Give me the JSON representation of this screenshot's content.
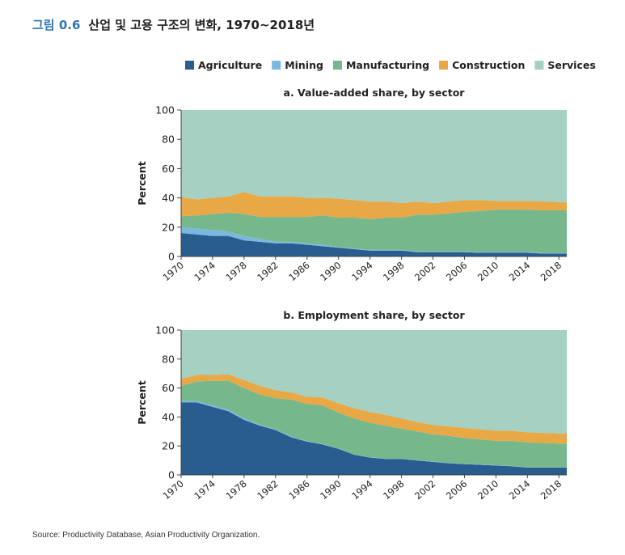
{
  "figure": {
    "number": "그림 0.6",
    "title": "산업 및 고용 구조의 변화, 1970~2018년",
    "source": "Source: Productivity Database, Asian Productivity Organization."
  },
  "colors": {
    "Agriculture": "#2a5d8f",
    "Mining": "#7ab8df",
    "Manufacturing": "#76b88c",
    "Construction": "#e8a845",
    "Services": "#a5d0c2"
  },
  "chart_data": [
    {
      "type": "area",
      "stacked": true,
      "title": "a. Value-added share, by sector",
      "xlabel": "",
      "ylabel": "Percent",
      "xlim": [
        1970,
        2019
      ],
      "ylim": [
        0,
        100
      ],
      "yticks": [
        0,
        20,
        40,
        60,
        80,
        100
      ],
      "xticks": [
        "1970",
        "1974",
        "1978",
        "1982",
        "1986",
        "1990",
        "1994",
        "1998",
        "2002",
        "2006",
        "2010",
        "2014",
        "2018"
      ],
      "legend": [
        "Agriculture",
        "Mining",
        "Manufacturing",
        "Construction",
        "Services"
      ],
      "x": [
        1970,
        1972,
        1974,
        1976,
        1978,
        1980,
        1982,
        1984,
        1986,
        1988,
        1990,
        1992,
        1994,
        1996,
        1998,
        2000,
        2002,
        2004,
        2006,
        2008,
        2010,
        2012,
        2014,
        2016,
        2019
      ],
      "series": [
        {
          "name": "Agriculture",
          "values": [
            16,
            15,
            14,
            14,
            11,
            10,
            9,
            9,
            8,
            7,
            6,
            5,
            4,
            4,
            4,
            3,
            3,
            3,
            3,
            2.5,
            2.5,
            2.5,
            2.5,
            2,
            2
          ]
        },
        {
          "name": "Mining",
          "values": [
            4,
            4,
            4,
            3,
            3,
            2,
            1,
            1,
            1,
            1,
            0.5,
            0.5,
            0.5,
            0.5,
            0.5,
            0.5,
            0.5,
            0.5,
            0.5,
            0.5,
            0.5,
            0.5,
            0.5,
            0.5,
            0.5
          ]
        },
        {
          "name": "Manufacturing",
          "values": [
            7.5,
            9,
            11,
            13,
            15,
            15,
            17,
            17,
            18,
            20,
            20,
            21,
            21,
            22,
            22,
            25,
            25,
            26,
            27,
            28,
            29,
            29,
            29,
            29,
            29
          ]
        },
        {
          "name": "Construction",
          "values": [
            13,
            11,
            11,
            11,
            15,
            14,
            14,
            14,
            13,
            12,
            13,
            12,
            12,
            11,
            10,
            9,
            8,
            8,
            8,
            7.5,
            6,
            6,
            6,
            6,
            5.5
          ]
        },
        {
          "name": "Services",
          "values": [
            59.5,
            61,
            60,
            59,
            56,
            59,
            59,
            59,
            60,
            60,
            60.5,
            61.5,
            62.5,
            62.5,
            63.5,
            62.5,
            63.5,
            62.5,
            61.5,
            61.5,
            62,
            62,
            62,
            62.5,
            63
          ]
        }
      ]
    },
    {
      "type": "area",
      "stacked": true,
      "title": "b. Employment share, by sector",
      "xlabel": "",
      "ylabel": "Percent",
      "xlim": [
        1970,
        2019
      ],
      "ylim": [
        0,
        100
      ],
      "yticks": [
        0,
        20,
        40,
        60,
        80,
        100
      ],
      "xticks": [
        "1970",
        "1974",
        "1978",
        "1982",
        "1986",
        "1990",
        "1994",
        "1998",
        "2002",
        "2006",
        "2010",
        "2014",
        "2018"
      ],
      "legend": [
        "Agriculture",
        "Mining",
        "Manufacturing",
        "Construction",
        "Services"
      ],
      "x": [
        1970,
        1972,
        1974,
        1976,
        1978,
        1980,
        1982,
        1984,
        1986,
        1988,
        1990,
        1992,
        1994,
        1996,
        1998,
        2000,
        2002,
        2004,
        2006,
        2008,
        2010,
        2012,
        2014,
        2016,
        2019
      ],
      "series": [
        {
          "name": "Agriculture",
          "values": [
            50,
            50,
            47,
            44,
            38,
            34,
            31,
            26,
            23,
            21,
            18,
            14,
            12,
            11,
            11,
            10,
            9,
            8,
            7.5,
            7,
            6.5,
            6,
            5,
            5,
            5
          ]
        },
        {
          "name": "Mining",
          "values": [
            1,
            1,
            1,
            1,
            1,
            0.8,
            0.5,
            0.5,
            0.3,
            0.3,
            0.3,
            0.2,
            0.2,
            0.2,
            0.2,
            0.2,
            0.2,
            0.2,
            0.2,
            0.2,
            0.2,
            0.2,
            0.2,
            0.2,
            0.2
          ]
        },
        {
          "name": "Manufacturing",
          "values": [
            10.5,
            13.5,
            17,
            20,
            21,
            20.7,
            21.5,
            25.5,
            25.7,
            26.7,
            24.7,
            24.8,
            23.8,
            22.8,
            20.8,
            19.8,
            18.8,
            18.8,
            17.8,
            17.3,
            16.8,
            17.3,
            17.3,
            16.8,
            16.3
          ]
        },
        {
          "name": "Construction",
          "values": [
            5,
            4.5,
            4,
            4.5,
            5.5,
            6,
            5.5,
            5,
            5,
            5.5,
            6.5,
            7,
            7.5,
            7.5,
            7,
            6.5,
            6.5,
            6.5,
            7,
            7,
            7,
            7,
            7,
            7,
            7
          ]
        },
        {
          "name": "Services",
          "values": [
            33.5,
            31,
            31,
            30.5,
            34.5,
            38.5,
            41.5,
            43,
            46,
            46.5,
            50.5,
            54,
            56.5,
            58.5,
            61,
            63.5,
            65.5,
            66.5,
            67.5,
            68.5,
            69.5,
            69.5,
            70.5,
            71,
            71.5
          ]
        }
      ]
    }
  ]
}
